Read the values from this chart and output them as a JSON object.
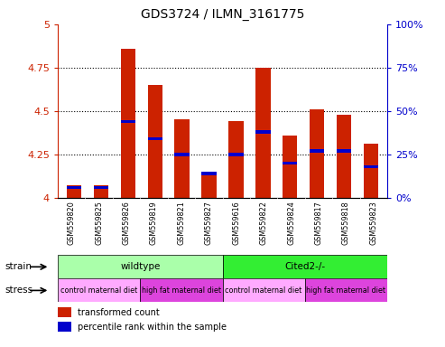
{
  "title": "GDS3724 / ILMN_3161775",
  "samples": [
    "GSM559820",
    "GSM559825",
    "GSM559826",
    "GSM559819",
    "GSM559821",
    "GSM559827",
    "GSM559616",
    "GSM559822",
    "GSM559824",
    "GSM559817",
    "GSM559818",
    "GSM559823"
  ],
  "red_values": [
    4.07,
    4.07,
    4.86,
    4.65,
    4.45,
    4.13,
    4.44,
    4.75,
    4.36,
    4.51,
    4.48,
    4.31
  ],
  "blue_values": [
    4.06,
    4.06,
    4.44,
    4.34,
    4.25,
    4.14,
    4.25,
    4.38,
    4.2,
    4.27,
    4.27,
    4.18
  ],
  "ymin": 4.0,
  "ymax": 5.0,
  "yticks": [
    4.0,
    4.25,
    4.5,
    4.75,
    5.0
  ],
  "ytick_labels": [
    "4",
    "4.25",
    "4.5",
    "4.75",
    "5"
  ],
  "y2ticks_labels": [
    "0%",
    "25%",
    "50%",
    "75%",
    "100%"
  ],
  "y2ticks_vals": [
    0.0,
    0.25,
    0.5,
    0.75,
    1.0
  ],
  "bar_width": 0.55,
  "red_color": "#cc2200",
  "blue_color": "#0000cc",
  "strain_groups": [
    {
      "label": "wildtype",
      "start": 0,
      "end": 6,
      "color": "#aaffaa"
    },
    {
      "label": "Cited2-/-",
      "start": 6,
      "end": 12,
      "color": "#33ee33"
    }
  ],
  "stress_groups": [
    {
      "label": "control maternal diet",
      "start": 0,
      "end": 3,
      "color": "#ffaaff"
    },
    {
      "label": "high fat maternal diet",
      "start": 3,
      "end": 6,
      "color": "#dd44dd"
    },
    {
      "label": "control maternal diet",
      "start": 6,
      "end": 9,
      "color": "#ffaaff"
    },
    {
      "label": "high fat maternal diet",
      "start": 9,
      "end": 12,
      "color": "#dd44dd"
    }
  ],
  "legend_items": [
    {
      "label": "transformed count",
      "color": "#cc2200"
    },
    {
      "label": "percentile rank within the sample",
      "color": "#0000cc"
    }
  ],
  "tick_bg_color": "#cccccc",
  "title_fontsize": 10
}
